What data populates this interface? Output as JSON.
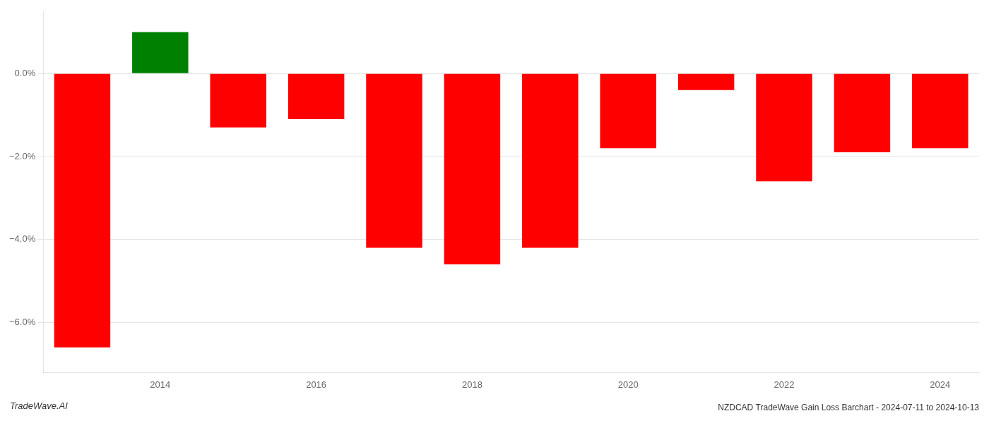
{
  "chart_data": {
    "type": "bar",
    "title": "NZDCAD TradeWave Gain Loss Barchart - 2024-07-11 to 2024-10-13",
    "annotations": [
      "TradeWave.AI"
    ],
    "categories": [
      null,
      "2014",
      null,
      "2016",
      null,
      "2018",
      null,
      "2020",
      null,
      "2022",
      null,
      "2024"
    ],
    "values": [
      -6.6,
      1.0,
      -1.3,
      -1.1,
      -4.2,
      -4.6,
      -4.2,
      -1.8,
      -0.4,
      -2.6,
      -1.9,
      -1.8
    ],
    "colors": [
      "#ff0000",
      "#008000",
      "#ff0000",
      "#ff0000",
      "#ff0000",
      "#ff0000",
      "#ff0000",
      "#ff0000",
      "#ff0000",
      "#ff0000",
      "#ff0000",
      "#ff0000"
    ],
    "ylim": [
      -7.2,
      1.5
    ],
    "yticks": [
      {
        "value": 0.0,
        "label": "0.0%"
      },
      {
        "value": -2.0,
        "label": "−2.0%"
      },
      {
        "value": -4.0,
        "label": "−4.0%"
      },
      {
        "value": -6.0,
        "label": "−6.0%"
      }
    ],
    "grid": true
  }
}
